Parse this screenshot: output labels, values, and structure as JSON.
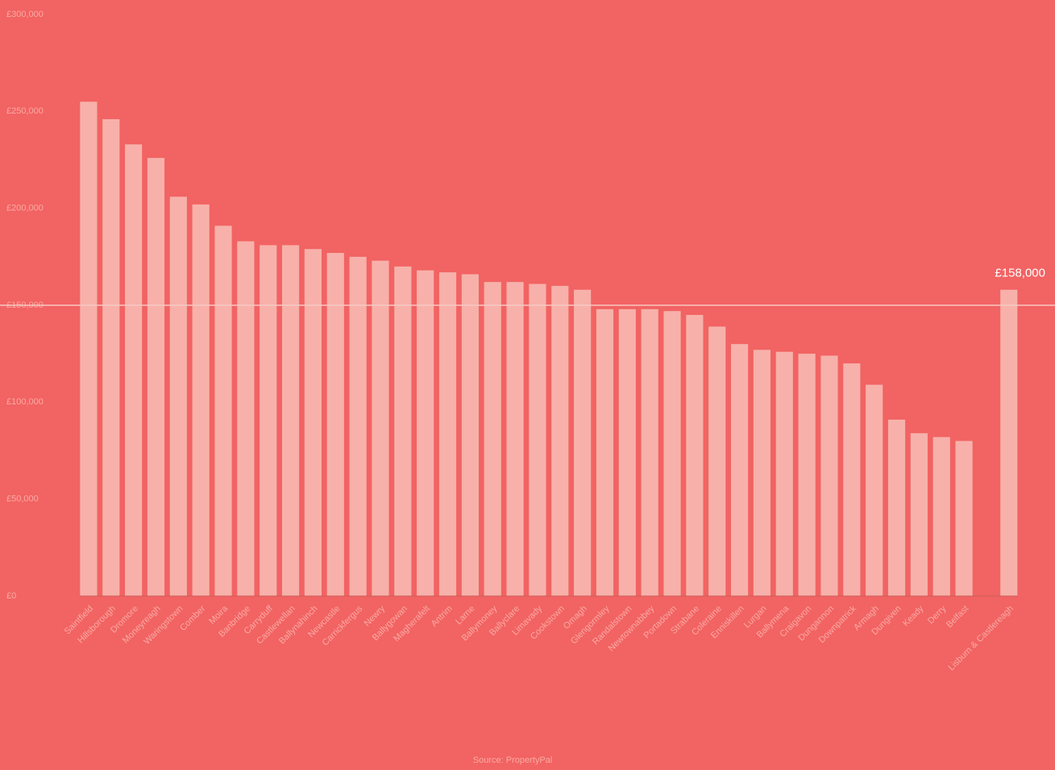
{
  "chart_data": {
    "type": "bar",
    "source": "Source: PropertyPal",
    "categories": [
      "Saintfield",
      "Hillsborough",
      "Dromore",
      "Moneyreagh",
      "Waringstown",
      "Comber",
      "Moira",
      "Banbridge",
      "Carryduff",
      "Castlewellan",
      "Ballynahinch",
      "Newcastle",
      "Carrickfergus",
      "Newry",
      "Ballygowan",
      "Magherafelt",
      "Antrim",
      "Larne",
      "Ballymoney",
      "Ballyclare",
      "Limavady",
      "Cookstown",
      "Omagh",
      "Glengormley",
      "Randalstown",
      "Newtownabbey",
      "Portadown",
      "Strabane",
      "Coleraine",
      "Enniskillen",
      "Lurgan",
      "Ballymena",
      "Craigavon",
      "Dungannon",
      "Downpatrick",
      "Armagh",
      "Dungiven",
      "Keady",
      "Derry",
      "Belfast",
      null,
      "Lisburn & Castlereagh"
    ],
    "values": [
      255000,
      246000,
      233000,
      226000,
      206000,
      202000,
      191000,
      183000,
      181000,
      181000,
      179000,
      177000,
      175000,
      173000,
      170000,
      168000,
      167000,
      166000,
      162000,
      162000,
      161000,
      160000,
      158000,
      148000,
      148000,
      148000,
      147000,
      145000,
      139000,
      130000,
      127000,
      126000,
      125000,
      124000,
      120000,
      109000,
      91000,
      84000,
      82000,
      80000,
      null,
      158000
    ],
    "value_labels": [
      null,
      null,
      null,
      null,
      null,
      null,
      null,
      null,
      null,
      null,
      null,
      null,
      null,
      null,
      null,
      null,
      null,
      null,
      null,
      null,
      null,
      null,
      null,
      null,
      null,
      null,
      null,
      null,
      null,
      null,
      null,
      null,
      null,
      null,
      null,
      null,
      null,
      null,
      null,
      null,
      null,
      "£158,000"
    ],
    "color": "#f7b1aa",
    "ylim": [
      0,
      300000
    ],
    "yticks": [
      {
        "value": 0,
        "label": "£0"
      },
      {
        "value": 50000,
        "label": "£50,000"
      },
      {
        "value": 100000,
        "label": "£100,000"
      },
      {
        "value": 150000,
        "label": "£150,000"
      },
      {
        "value": 200000,
        "label": "£200,000"
      },
      {
        "value": 250000,
        "label": "£250,000"
      },
      {
        "value": 300000,
        "label": "£300,000"
      }
    ],
    "reference_line": 150000,
    "grid": false
  }
}
